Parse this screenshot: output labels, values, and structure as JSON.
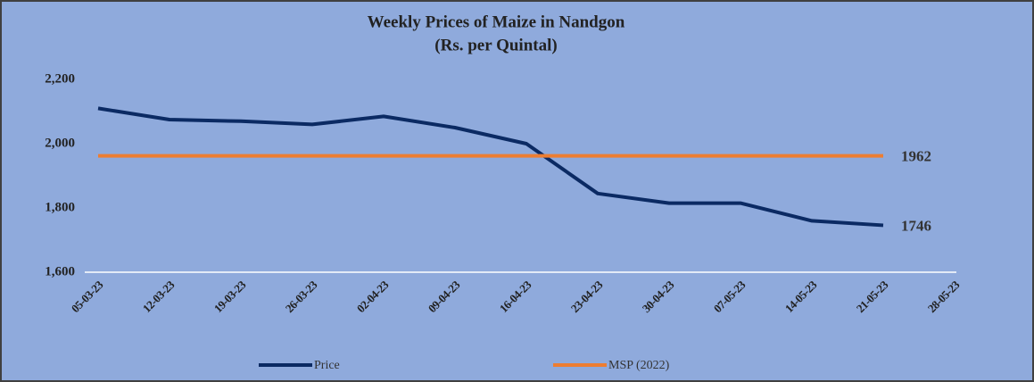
{
  "chart_data": {
    "type": "line",
    "title": "Weekly Prices of Maize in Nandgon",
    "subtitle": "(Rs. per Quintal)",
    "categories": [
      "05-03-23",
      "12-03-23",
      "19-03-23",
      "26-03-23",
      "02-04-23",
      "09-04-23",
      "16-04-23",
      "23-04-23",
      "30-04-23",
      "07-05-23",
      "14-05-23",
      "21-05-23",
      "28-05-23"
    ],
    "series": [
      {
        "name": "Price",
        "color": "#0b2a63",
        "values": [
          2110,
          2075,
          2070,
          2060,
          2085,
          2050,
          2000,
          1845,
          1815,
          1815,
          1760,
          1746,
          null
        ]
      },
      {
        "name": "MSP (2022)",
        "color": "#ed7d31",
        "values": [
          1962,
          1962,
          1962,
          1962,
          1962,
          1962,
          1962,
          1962,
          1962,
          1962,
          1962,
          1962,
          null
        ]
      }
    ],
    "ylim": [
      1600,
      2200
    ],
    "yticks": [
      {
        "value": 1600,
        "label": "1,600"
      },
      {
        "value": 1800,
        "label": "1,800"
      },
      {
        "value": 2000,
        "label": "2,000"
      },
      {
        "value": 2200,
        "label": "2,200"
      }
    ],
    "grid": false,
    "legend": "bottom"
  }
}
